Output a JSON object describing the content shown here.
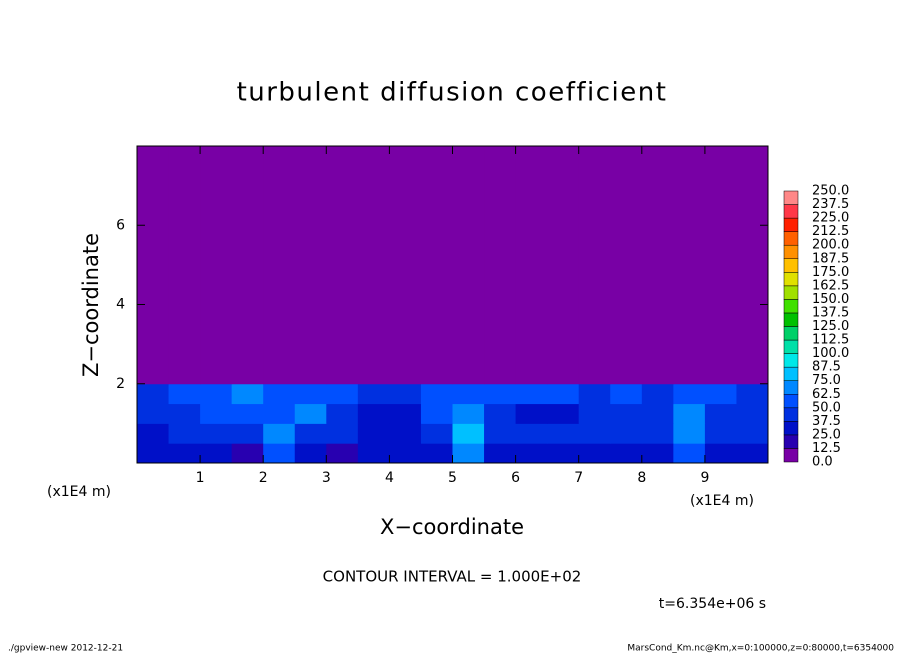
{
  "chart_data": {
    "type": "heatmap",
    "title": "turbulent diffusion coefficient",
    "x_label": "X−coordinate",
    "y_label": "Z−coordinate",
    "x_unit_left": "(x1E4 m)",
    "x_unit_right": "(x1E4 m)",
    "contour_interval": "CONTOUR INTERVAL = 1.000E+02",
    "time_label": "t=6.354e+06 s",
    "footer_left": "./gpview-new  2012-12-21",
    "footer_right": "MarsCond_Km.nc@Km,x=0:100000,z=0:80000,t=6354000",
    "xlim": [
      0,
      10
    ],
    "ylim": [
      0,
      8
    ],
    "xticks": [
      1,
      2,
      3,
      4,
      5,
      6,
      7,
      8,
      9
    ],
    "yticks": [
      2,
      4,
      6
    ],
    "x_bins": [
      0,
      0.5,
      1,
      1.5,
      2,
      2.5,
      3,
      3.5,
      4,
      4.5,
      5,
      5.5,
      6,
      6.5,
      7,
      7.5,
      8,
      8.5,
      9,
      9.5,
      10
    ],
    "z_bins": [
      0,
      0.5,
      1,
      1.5,
      2,
      8
    ],
    "values": [
      [
        25,
        25,
        30,
        20,
        60,
        25,
        20,
        25,
        25,
        30,
        70,
        25,
        25,
        25,
        30,
        25,
        35,
        60,
        25,
        30
      ],
      [
        35,
        40,
        40,
        45,
        65,
        40,
        45,
        35,
        35,
        40,
        75,
        45,
        40,
        40,
        45,
        40,
        40,
        70,
        40,
        40
      ],
      [
        40,
        45,
        50,
        55,
        60,
        65,
        40,
        30,
        30,
        50,
        70,
        45,
        35,
        35,
        40,
        45,
        40,
        65,
        40,
        45
      ],
      [
        45,
        50,
        60,
        70,
        50,
        55,
        60,
        40,
        45,
        55,
        60,
        50,
        60,
        55,
        45,
        50,
        45,
        55,
        50,
        45
      ],
      [
        0,
        0,
        0,
        0,
        0,
        0,
        0,
        0,
        0,
        0,
        0,
        0,
        0,
        0,
        0,
        0,
        0,
        0,
        0,
        0
      ]
    ],
    "levels": [
      {
        "value": 0,
        "label": "0.0"
      },
      12.5,
      {
        "value": 25,
        "label": "25.0"
      },
      37.5,
      {
        "value": 50,
        "label": "50.0"
      },
      62.5,
      {
        "value": 75,
        "label": "75.0"
      },
      87.5,
      {
        "value": 100,
        "label": "100.0"
      },
      112.5,
      {
        "value": 125,
        "label": "125.0"
      },
      137.5,
      {
        "value": 150,
        "label": "150.0"
      },
      162.5,
      {
        "value": 175,
        "label": "175.0"
      },
      187.5,
      {
        "value": 200,
        "label": "200.0"
      },
      212.5,
      {
        "value": 225,
        "label": "225.0"
      },
      237.5,
      {
        "value": 250,
        "label": "250.0"
      }
    ],
    "colors": [
      "#7800a5",
      "#2800b0",
      "#0010c8",
      "#0030e0",
      "#0050ff",
      "#0088ff",
      "#00c0ff",
      "#00e8e8",
      "#00e0a8",
      "#00d068",
      "#00c000",
      "#40e000",
      "#a0e000",
      "#e0e000",
      "#ffc000",
      "#ff9000",
      "#ff6000",
      "#ff2000",
      "#ff3848",
      "#ff8888"
    ]
  }
}
